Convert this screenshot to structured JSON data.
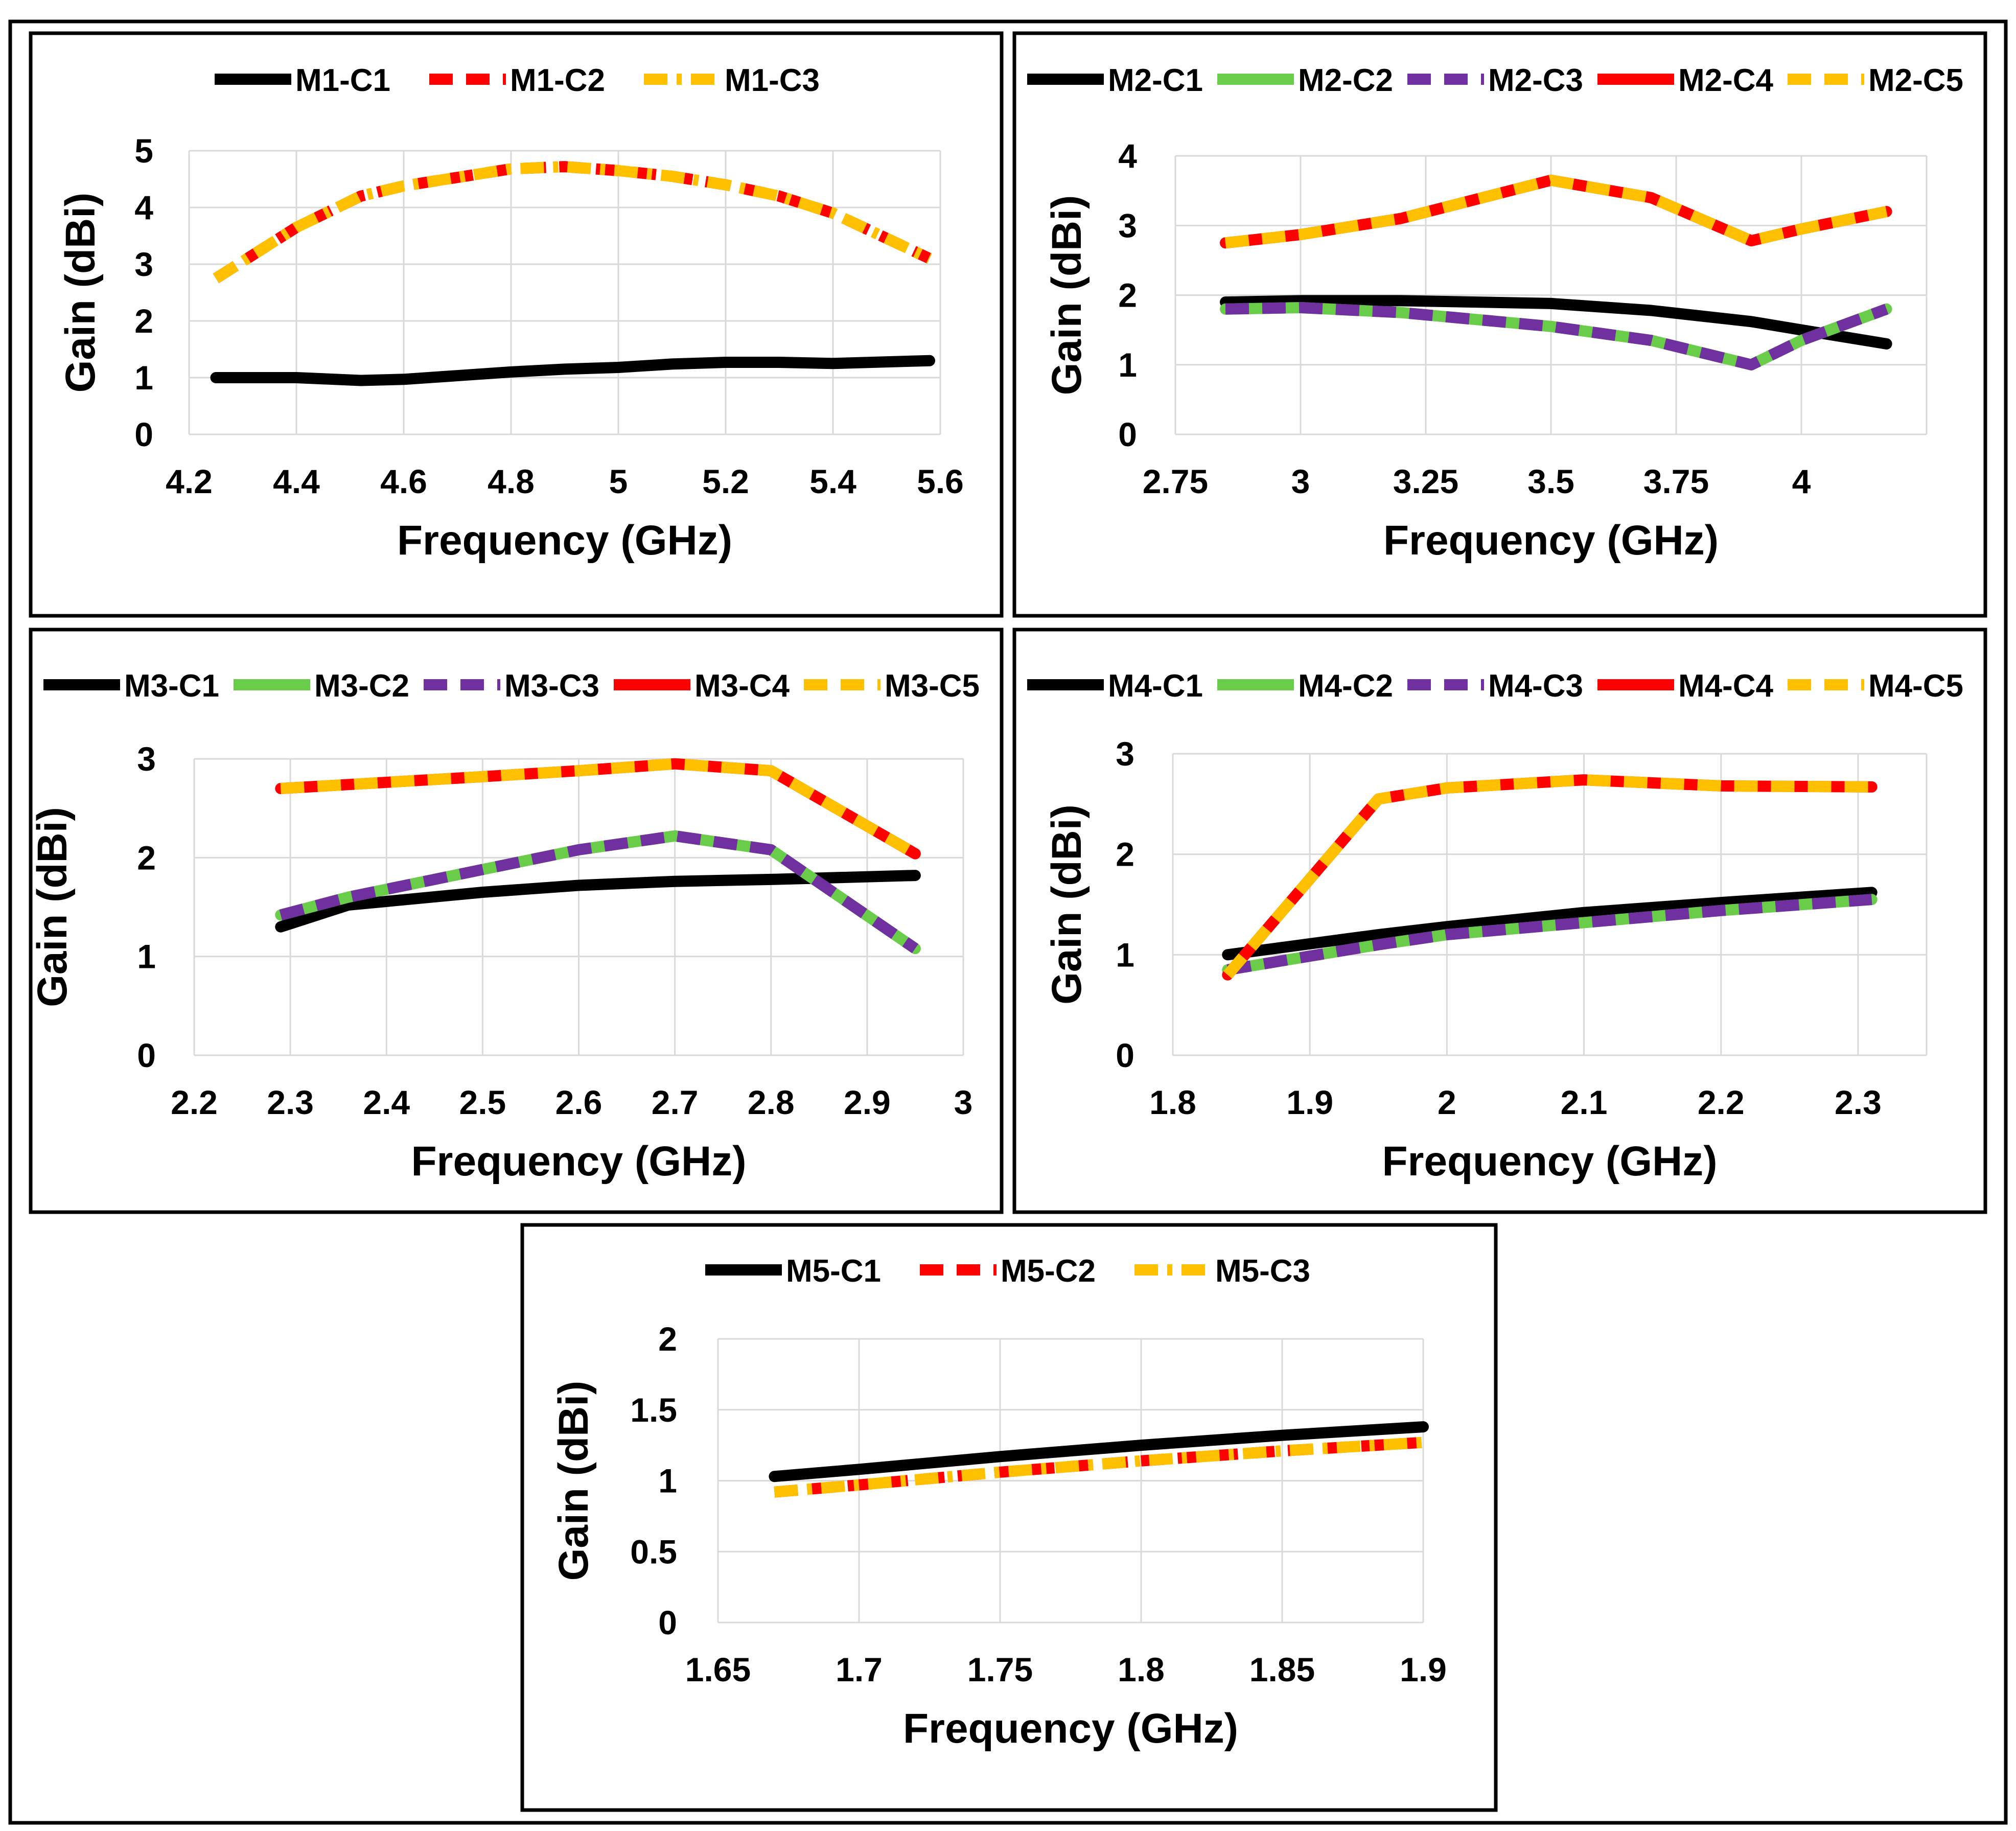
{
  "colors": {
    "black": "#000000",
    "green": "#6ACD4A",
    "purple": "#7030A0",
    "red": "#FF0000",
    "orange": "#FFC000",
    "grid": "#D9D9D9",
    "frame": "#000000"
  },
  "chart_data": [
    {
      "type": "line",
      "xlabel": "Frequency (GHz)",
      "ylabel": "Gain (dBi)",
      "xlim": [
        4.2,
        5.6
      ],
      "ylim": [
        0,
        5
      ],
      "xticks": [
        "4.2",
        "4.4",
        "4.6",
        "4.8",
        "5",
        "5.2",
        "5.4",
        "5.6"
      ],
      "yticks": [
        "0",
        "1",
        "2",
        "3",
        "4",
        "5"
      ],
      "x": [
        4.25,
        4.4,
        4.52,
        4.6,
        4.8,
        4.9,
        5.0,
        5.1,
        5.2,
        5.3,
        5.4,
        5.58
      ],
      "series": [
        {
          "name": "M1-C1",
          "color": "black",
          "style": "solid",
          "values": [
            1.0,
            1.0,
            0.95,
            0.97,
            1.1,
            1.15,
            1.18,
            1.24,
            1.27,
            1.27,
            1.25,
            1.3
          ]
        },
        {
          "name": "M1-C2",
          "color": "red",
          "style": "dash",
          "values": [
            2.75,
            3.65,
            4.2,
            4.38,
            4.68,
            4.72,
            4.65,
            4.55,
            4.4,
            4.2,
            3.9,
            3.1
          ]
        },
        {
          "name": "M1-C3",
          "color": "orange",
          "style": "dashdot",
          "values": [
            2.75,
            3.65,
            4.2,
            4.38,
            4.68,
            4.72,
            4.65,
            4.55,
            4.4,
            4.2,
            3.9,
            3.1
          ]
        }
      ]
    },
    {
      "type": "line",
      "xlabel": "Frequency (GHz)",
      "ylabel": "Gain (dBi)",
      "xlim": [
        2.75,
        4.25
      ],
      "ylim": [
        0,
        4
      ],
      "xticks": [
        "2.75",
        "3",
        "3.25",
        "3.5",
        "3.75",
        "4"
      ],
      "yticks": [
        "0",
        "1",
        "2",
        "3",
        "4"
      ],
      "x": [
        2.85,
        3.0,
        3.2,
        3.5,
        3.7,
        3.9,
        4.0,
        4.17
      ],
      "series": [
        {
          "name": "M2-C1",
          "color": "black",
          "style": "solid",
          "values": [
            1.9,
            1.92,
            1.92,
            1.88,
            1.78,
            1.62,
            1.5,
            1.3
          ]
        },
        {
          "name": "M2-C2",
          "color": "green",
          "style": "solid",
          "values": [
            1.8,
            1.82,
            1.75,
            1.55,
            1.35,
            1.0,
            1.35,
            1.8
          ]
        },
        {
          "name": "M2-C3",
          "color": "purple",
          "style": "dash",
          "values": [
            1.8,
            1.82,
            1.75,
            1.55,
            1.35,
            1.0,
            1.35,
            1.8
          ]
        },
        {
          "name": "M2-C4",
          "color": "red",
          "style": "solid",
          "values": [
            2.75,
            2.87,
            3.1,
            3.65,
            3.4,
            2.78,
            2.95,
            3.2
          ]
        },
        {
          "name": "M2-C5",
          "color": "orange",
          "style": "dash",
          "values": [
            2.75,
            2.87,
            3.1,
            3.65,
            3.4,
            2.78,
            2.95,
            3.2
          ]
        }
      ]
    },
    {
      "type": "line",
      "xlabel": "Frequency (GHz)",
      "ylabel": "Gain (dBi)",
      "xlim": [
        2.2,
        3.0
      ],
      "ylim": [
        0,
        3
      ],
      "xticks": [
        "2.2",
        "2.3",
        "2.4",
        "2.5",
        "2.6",
        "2.7",
        "2.8",
        "2.9",
        "3"
      ],
      "yticks": [
        "0",
        "1",
        "2",
        "3"
      ],
      "x": [
        2.29,
        2.36,
        2.5,
        2.6,
        2.7,
        2.8,
        2.95
      ],
      "series": [
        {
          "name": "M3-C1",
          "color": "black",
          "style": "solid",
          "values": [
            1.3,
            1.52,
            1.65,
            1.72,
            1.76,
            1.78,
            1.82
          ]
        },
        {
          "name": "M3-C2",
          "color": "green",
          "style": "solid",
          "values": [
            1.42,
            1.6,
            1.88,
            2.08,
            2.22,
            2.08,
            1.08
          ]
        },
        {
          "name": "M3-C3",
          "color": "purple",
          "style": "dash",
          "values": [
            1.42,
            1.6,
            1.88,
            2.08,
            2.22,
            2.08,
            1.08
          ]
        },
        {
          "name": "M3-C4",
          "color": "red",
          "style": "solid",
          "values": [
            2.7,
            2.74,
            2.82,
            2.88,
            2.95,
            2.88,
            2.04
          ]
        },
        {
          "name": "M3-C5",
          "color": "orange",
          "style": "dash",
          "values": [
            2.7,
            2.74,
            2.82,
            2.88,
            2.95,
            2.88,
            2.04
          ]
        }
      ]
    },
    {
      "type": "line",
      "xlabel": "Frequency (GHz)",
      "ylabel": "Gain (dBi)",
      "xlim": [
        1.8,
        2.35
      ],
      "ylim": [
        0,
        3
      ],
      "xticks": [
        "1.8",
        "1.9",
        "2",
        "2.1",
        "2.2",
        "2.3"
      ],
      "yticks": [
        "0",
        "1",
        "2",
        "3"
      ],
      "x": [
        1.84,
        1.95,
        2.0,
        2.1,
        2.2,
        2.31
      ],
      "series": [
        {
          "name": "M4-C1",
          "color": "black",
          "style": "solid",
          "values": [
            1.0,
            1.2,
            1.28,
            1.42,
            1.52,
            1.62
          ]
        },
        {
          "name": "M4-C2",
          "color": "green",
          "style": "solid",
          "values": [
            0.85,
            1.1,
            1.2,
            1.32,
            1.44,
            1.55
          ]
        },
        {
          "name": "M4-C3",
          "color": "purple",
          "style": "dash",
          "values": [
            0.85,
            1.1,
            1.2,
            1.32,
            1.44,
            1.55
          ]
        },
        {
          "name": "M4-C4",
          "color": "red",
          "style": "solid",
          "values": [
            0.8,
            2.55,
            2.66,
            2.74,
            2.68,
            2.67
          ]
        },
        {
          "name": "M4-C5",
          "color": "orange",
          "style": "dash",
          "values": [
            0.8,
            2.55,
            2.66,
            2.74,
            2.68,
            2.67
          ]
        }
      ]
    },
    {
      "type": "line",
      "xlabel": "Frequency (GHz)",
      "ylabel": "Gain (dBi)",
      "xlim": [
        1.65,
        1.9
      ],
      "ylim": [
        0,
        2
      ],
      "xticks": [
        "1.65",
        "1.7",
        "1.75",
        "1.8",
        "1.85",
        "1.9"
      ],
      "yticks": [
        "0",
        "0.5",
        "1",
        "1.5",
        "2"
      ],
      "x": [
        1.67,
        1.7,
        1.75,
        1.8,
        1.85,
        1.9
      ],
      "series": [
        {
          "name": "M5-C1",
          "color": "black",
          "style": "solid",
          "values": [
            1.03,
            1.08,
            1.17,
            1.25,
            1.32,
            1.38
          ]
        },
        {
          "name": "M5-C2",
          "color": "red",
          "style": "dash",
          "values": [
            0.92,
            0.97,
            1.06,
            1.14,
            1.21,
            1.27
          ]
        },
        {
          "name": "M5-C3",
          "color": "orange",
          "style": "dashdot",
          "values": [
            0.92,
            0.97,
            1.06,
            1.14,
            1.21,
            1.27
          ]
        }
      ]
    }
  ]
}
